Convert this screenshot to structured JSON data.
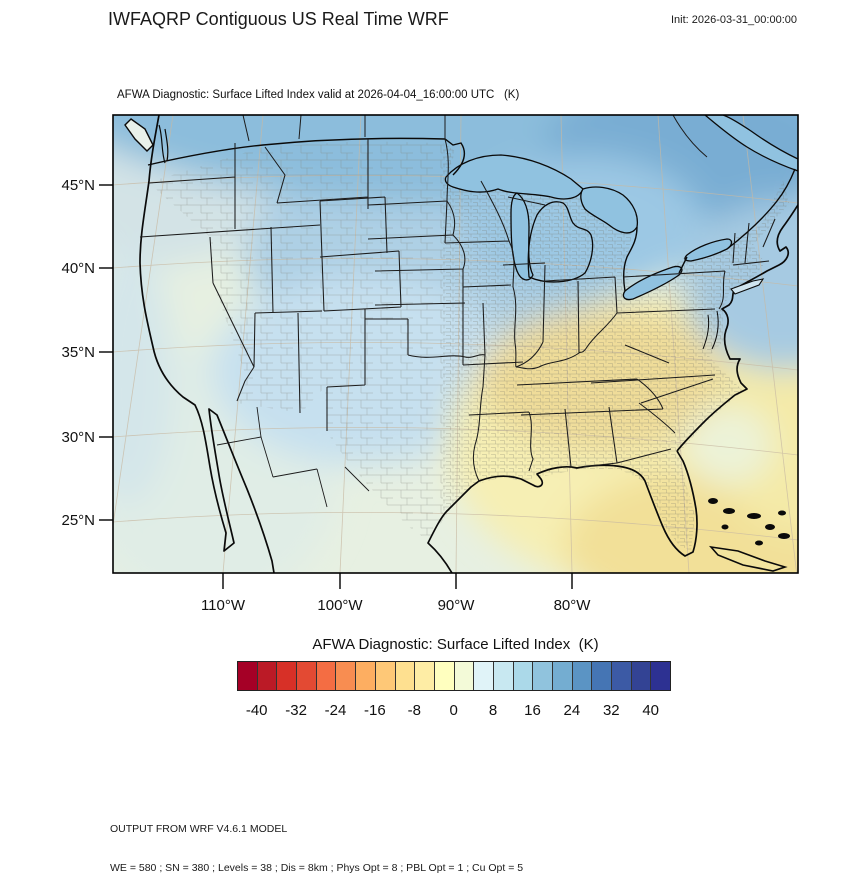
{
  "header": {
    "title": "IWFAQRP Contiguous US Real Time WRF",
    "init_label": "Init: 2026-03-31_00:00:00"
  },
  "map": {
    "subtitle": "AFWA Diagnostic: Surface Lifted Index valid at 2026-04-04_16:00:00 UTC   (K)",
    "lat_ticks": [
      "45°N",
      "40°N",
      "35°N",
      "30°N",
      "25°N"
    ],
    "lon_ticks": [
      "110°W",
      "100°W",
      "90°W",
      "80°W"
    ],
    "palette": {
      "base": "#e7f0e2",
      "pacific_pale": "#d4e6ea",
      "nw_pale_blue": "#d3e3e6",
      "west_pale_green": "#e6f0e1",
      "mexico_pale": "#e0ede6",
      "plains_blue": "#aed0e5",
      "sw_blue": "#c6e0ef",
      "lakes_region_blue": "#9cc8e4",
      "north_blue": "#8cbddc",
      "deep_blue": "#79add3",
      "ne_atlantic_blue": "#a6cae2",
      "se_yellow": "#f6efb4",
      "valley_gold": "#efdc99",
      "gulf_gold": "#f2e098",
      "atlantic_yellow": "#f4eaa8",
      "ga_coast_pale": "#ecf3d8",
      "lake_blue": "#90c2e0"
    }
  },
  "colorbar": {
    "title": "AFWA Diagnostic: Surface Lifted Index  (K)",
    "tick_labels": [
      "-40",
      "-32",
      "-24",
      "-16",
      "-8",
      "0",
      "8",
      "16",
      "24",
      "32",
      "40"
    ],
    "colors": [
      "#a50026",
      "#bb1a26",
      "#d73027",
      "#e34a33",
      "#f46d43",
      "#f88d51",
      "#fdae61",
      "#fec877",
      "#fee090",
      "#feeda5",
      "#ffffbf",
      "#f3fad8",
      "#e0f3f8",
      "#c8e8f1",
      "#abd9e9",
      "#90c3dd",
      "#74add1",
      "#5b94c4",
      "#4575b4",
      "#3c5aa5",
      "#334394",
      "#2d3192"
    ]
  },
  "footer": {
    "line1": "OUTPUT FROM WRF V4.6.1 MODEL",
    "line2": "WE = 580 ; SN = 380 ; Levels = 38 ; Dis = 8km ; Phys Opt = 8 ; PBL Opt = 1 ; Cu Opt = 5"
  }
}
